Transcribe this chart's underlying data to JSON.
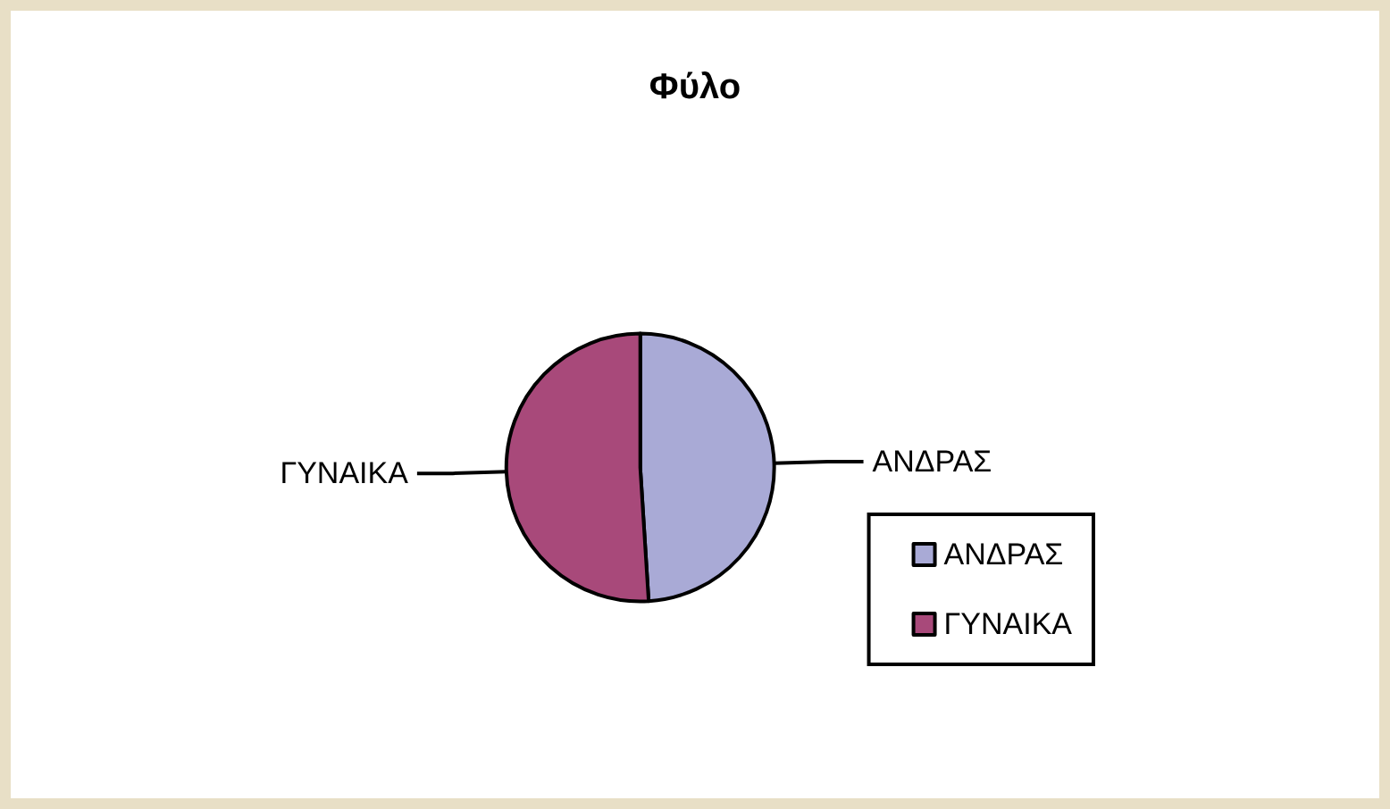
{
  "chart_data": {
    "type": "pie",
    "title": "Φύλο",
    "categories": [
      "ΑΝΔΡΑΣ",
      "ΓΥΝΑΙΚΑ"
    ],
    "values": [
      49,
      51
    ],
    "colors": [
      "#a9aad6",
      "#a8497a"
    ],
    "legend": "right"
  }
}
